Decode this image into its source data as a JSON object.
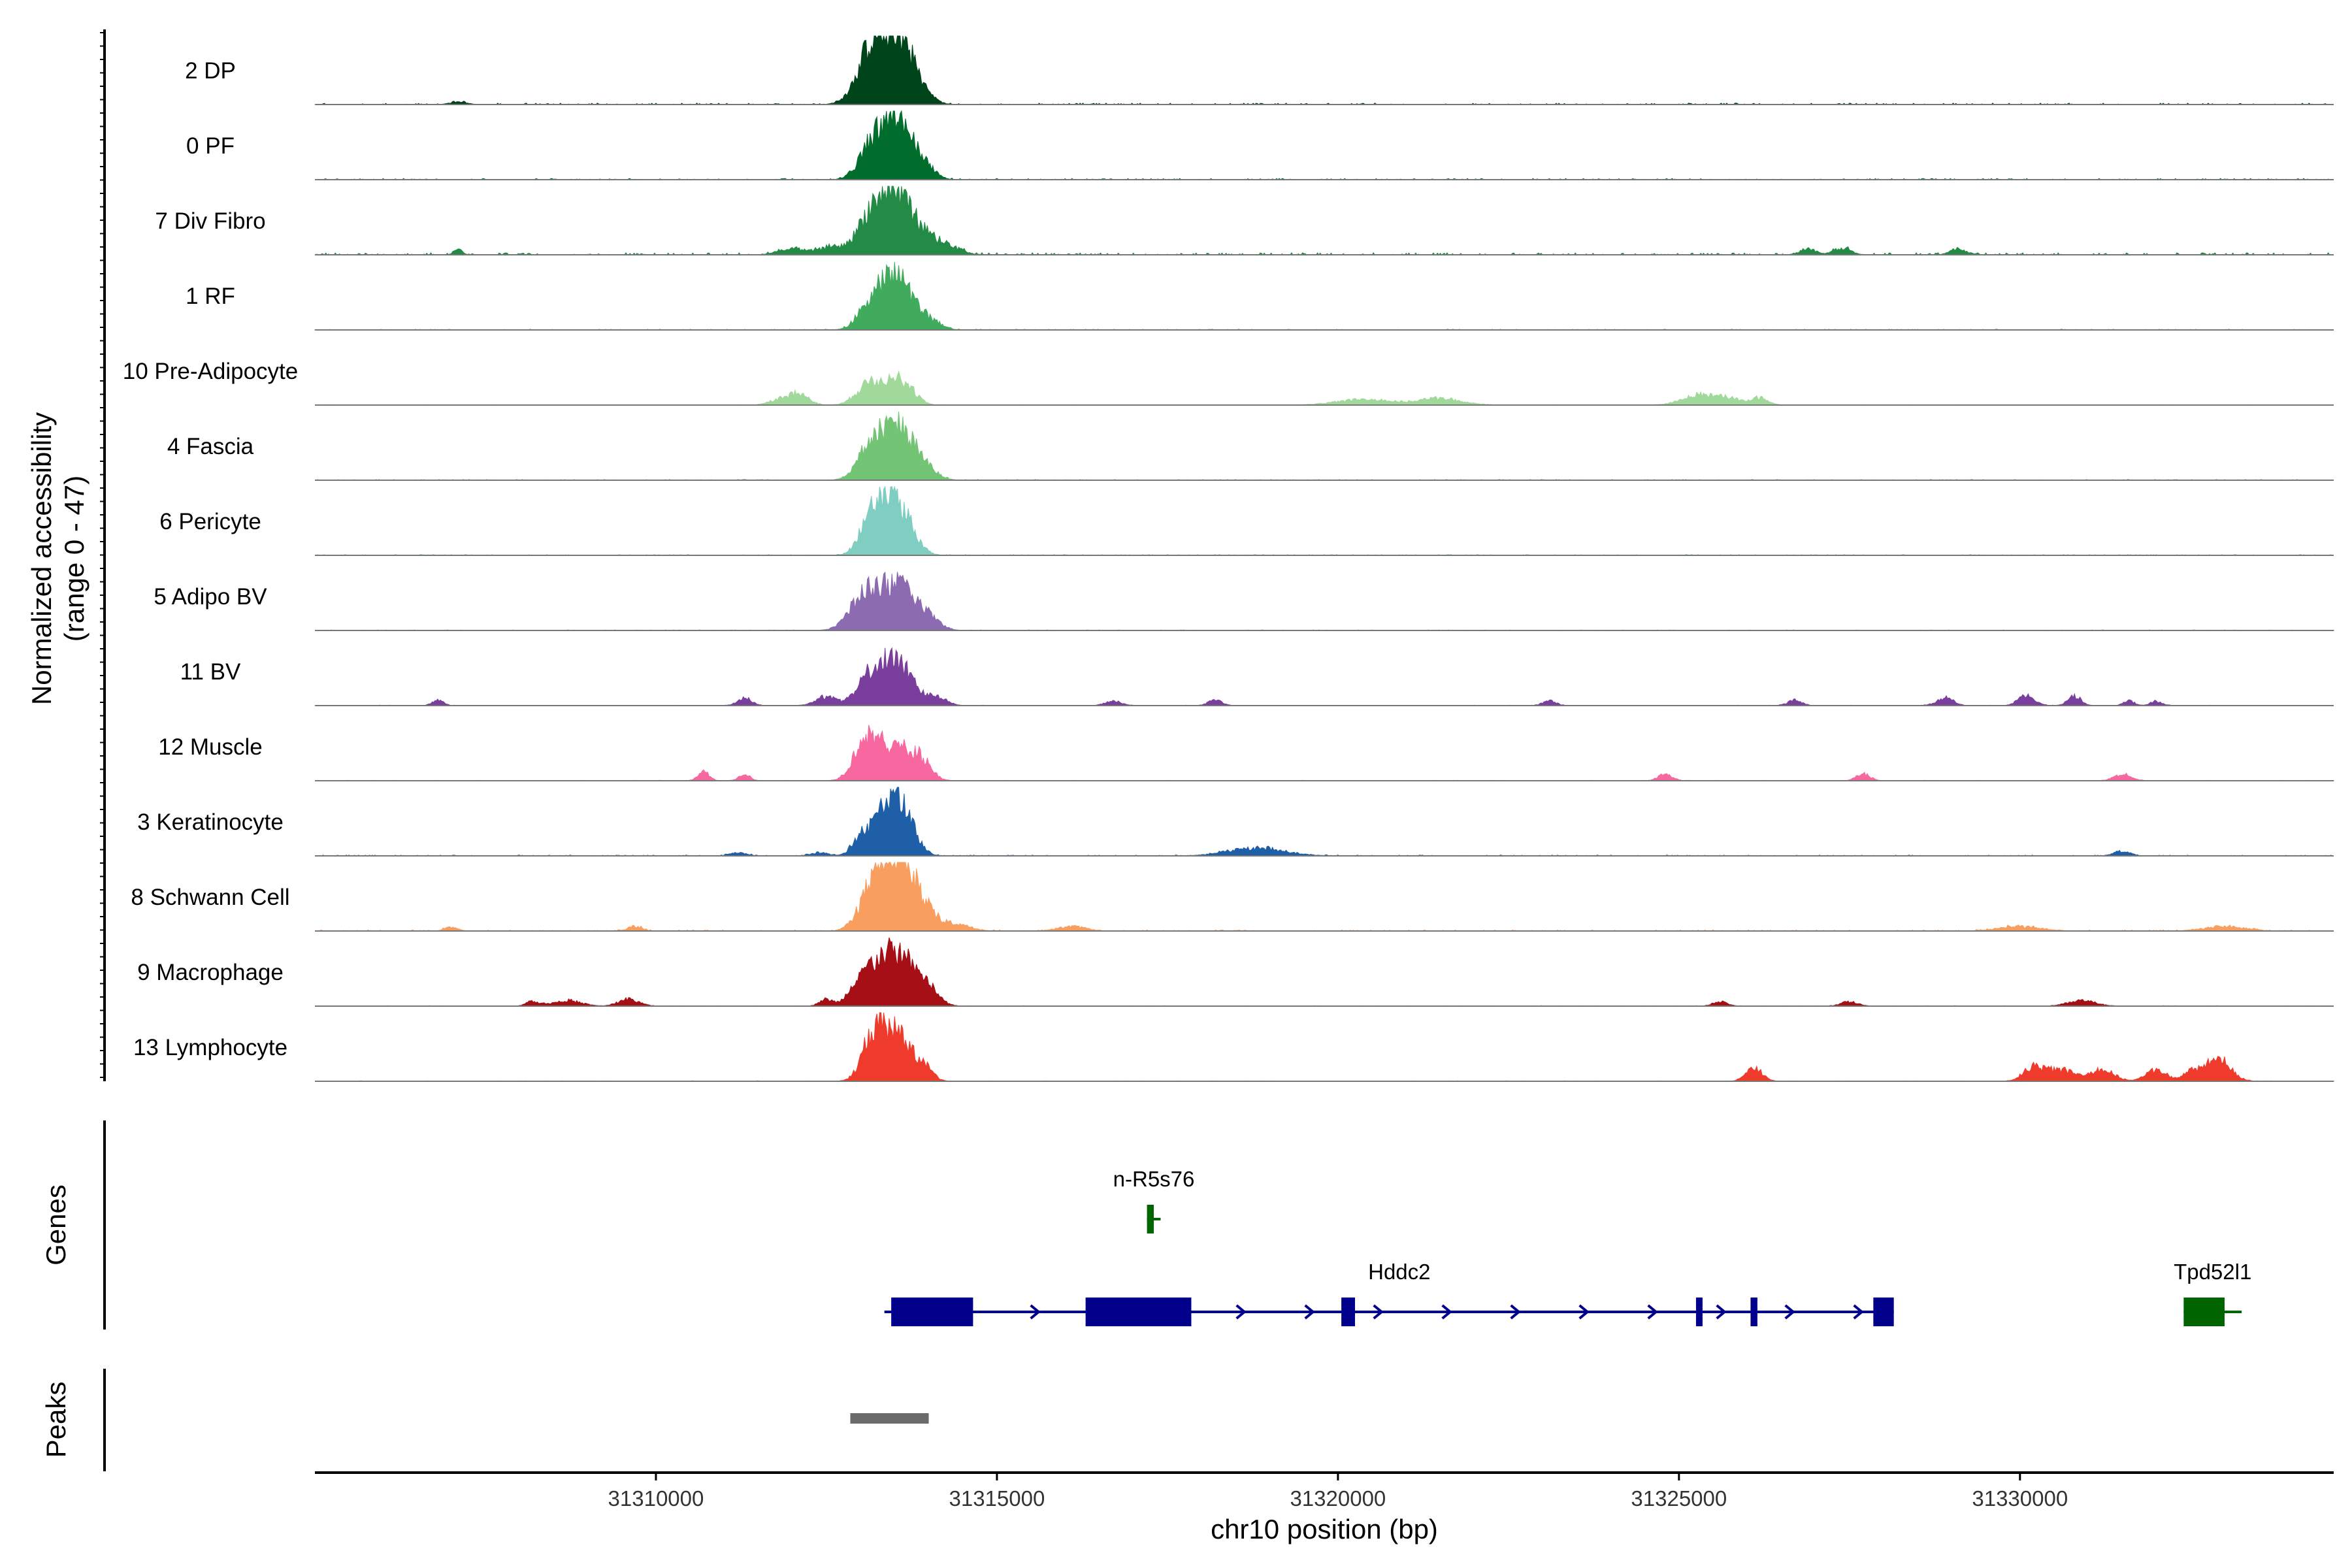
{
  "chart_data": {
    "type": "area",
    "title": "",
    "ylabel": "Normalized accessibility",
    "ylabel_range": "(range 0 - 47)",
    "ylim": [
      0,
      47
    ],
    "xlabel": "chr10 position (bp)",
    "xlim": [
      31305000,
      31334600
    ],
    "x_ticks": [
      31310000,
      31315000,
      31320000,
      31325000,
      31330000
    ],
    "x_tick_labels": [
      "31310000",
      "31315000",
      "31320000",
      "31325000",
      "31330000"
    ],
    "tracks": [
      {
        "name": "2 DP",
        "color": "#00441b",
        "peaks": [
          [
            31313400,
            47,
            260
          ],
          [
            31313200,
            22,
            180
          ],
          [
            31313650,
            24,
            160
          ],
          [
            31313000,
            10,
            180
          ],
          [
            31313900,
            8,
            160
          ],
          [
            31307100,
            2.2,
            120
          ]
        ],
        "noise": 1.0
      },
      {
        "name": "0 PF",
        "color": "#006d2c",
        "peaks": [
          [
            31313350,
            45,
            220
          ],
          [
            31313650,
            28,
            180
          ],
          [
            31313050,
            8,
            150
          ],
          [
            31313950,
            10,
            150
          ]
        ],
        "noise": 0.8
      },
      {
        "name": "7 Div Fibro",
        "color": "#238b45",
        "peaks": [
          [
            31313350,
            47,
            200
          ],
          [
            31313650,
            32,
            180
          ],
          [
            31313050,
            18,
            150
          ],
          [
            31313950,
            12,
            160
          ],
          [
            31314250,
            8,
            200
          ],
          [
            31312600,
            7,
            200
          ],
          [
            31312000,
            5,
            200
          ],
          [
            31307100,
            5,
            60
          ],
          [
            31326900,
            5,
            120
          ],
          [
            31329100,
            5,
            120
          ],
          [
            31327400,
            6,
            120
          ]
        ],
        "noise": 1.4
      },
      {
        "name": "1 RF",
        "color": "#41ab5d",
        "peaks": [
          [
            31313350,
            36,
            200
          ],
          [
            31313650,
            28,
            180
          ],
          [
            31313050,
            10,
            150
          ],
          [
            31314000,
            8,
            170
          ]
        ],
        "noise": 0.5
      },
      {
        "name": "10 Pre-Adipocyte",
        "color": "#a1d99b",
        "peaks": [
          [
            31313350,
            18,
            220
          ],
          [
            31313050,
            10,
            160
          ],
          [
            31313650,
            14,
            160
          ],
          [
            31312100,
            10,
            140
          ],
          [
            31311800,
            5,
            140
          ],
          [
            31320400,
            5,
            400
          ],
          [
            31321500,
            6,
            300
          ],
          [
            31325300,
            8,
            250
          ],
          [
            31325700,
            5,
            250
          ],
          [
            31326200,
            6,
            120
          ]
        ],
        "noise": 0.3
      },
      {
        "name": "4 Fascia",
        "color": "#74c476",
        "peaks": [
          [
            31313350,
            38,
            230
          ],
          [
            31313650,
            28,
            180
          ],
          [
            31313050,
            14,
            150
          ],
          [
            31313950,
            10,
            170
          ]
        ],
        "noise": 0.6
      },
      {
        "name": "6 Pericyte",
        "color": "#80cdc1",
        "peaks": [
          [
            31313350,
            45,
            200
          ],
          [
            31313650,
            25,
            180
          ],
          [
            31313100,
            14,
            150
          ]
        ],
        "noise": 0.6
      },
      {
        "name": "5 Adipo BV",
        "color": "#8c6bb1",
        "peaks": [
          [
            31313300,
            30,
            240
          ],
          [
            31313650,
            25,
            200
          ],
          [
            31313000,
            18,
            200
          ],
          [
            31314000,
            10,
            170
          ]
        ],
        "noise": 0.4
      },
      {
        "name": "11 BV",
        "color": "#7a3f9d",
        "peaks": [
          [
            31313350,
            32,
            200
          ],
          [
            31313650,
            25,
            170
          ],
          [
            31313050,
            16,
            150
          ],
          [
            31312500,
            8,
            150
          ],
          [
            31314100,
            8,
            150
          ],
          [
            31306800,
            5,
            80
          ],
          [
            31311300,
            7,
            100
          ],
          [
            31316700,
            4,
            120
          ],
          [
            31318200,
            5,
            100
          ],
          [
            31323100,
            4,
            100
          ],
          [
            31326700,
            5,
            100
          ],
          [
            31328900,
            7,
            120
          ],
          [
            31330100,
            9,
            120
          ],
          [
            31330800,
            8,
            100
          ],
          [
            31331600,
            4,
            80
          ],
          [
            31332000,
            4,
            80
          ]
        ],
        "noise": 0.3
      },
      {
        "name": "12 Muscle",
        "color": "#f768a1",
        "peaks": [
          [
            31313200,
            28,
            200
          ],
          [
            31313600,
            24,
            200
          ],
          [
            31313000,
            16,
            150
          ],
          [
            31313900,
            14,
            150
          ],
          [
            31310700,
            8,
            80
          ],
          [
            31311300,
            6,
            80
          ],
          [
            31324800,
            6,
            100
          ],
          [
            31327700,
            6,
            100
          ],
          [
            31331500,
            6,
            120
          ]
        ],
        "noise": 0.3
      },
      {
        "name": "3 Keratinocyte",
        "color": "#1f5fa8",
        "peaks": [
          [
            31313400,
            42,
            200
          ],
          [
            31313650,
            25,
            170
          ],
          [
            31313000,
            16,
            120
          ],
          [
            31318800,
            7,
            400
          ],
          [
            31312400,
            3,
            120
          ],
          [
            31311200,
            3,
            120
          ],
          [
            31331500,
            4,
            120
          ]
        ],
        "noise": 0.6
      },
      {
        "name": "8 Schwann Cell",
        "color": "#f89e5f",
        "peaks": [
          [
            31313400,
            47,
            230
          ],
          [
            31313650,
            36,
            200
          ],
          [
            31313100,
            18,
            170
          ],
          [
            31313950,
            14,
            180
          ],
          [
            31314400,
            6,
            200
          ],
          [
            31309700,
            4,
            100
          ],
          [
            31316100,
            4,
            200
          ],
          [
            31307000,
            3,
            100
          ],
          [
            31330000,
            4,
            300
          ],
          [
            31333000,
            4,
            300
          ]
        ],
        "noise": 0.7
      },
      {
        "name": "9 Macrophage",
        "color": "#a50f15",
        "peaks": [
          [
            31313350,
            38,
            180
          ],
          [
            31313650,
            30,
            170
          ],
          [
            31313000,
            26,
            150
          ],
          [
            31313950,
            18,
            170
          ],
          [
            31312500,
            6,
            100
          ],
          [
            31309600,
            6,
            150
          ],
          [
            31308700,
            5,
            200
          ],
          [
            31308200,
            4,
            100
          ],
          [
            31325600,
            4,
            100
          ],
          [
            31330900,
            5,
            200
          ],
          [
            31327500,
            4,
            120
          ]
        ],
        "noise": 0.3
      },
      {
        "name": "13 Lymphocyte",
        "color": "#ef3b2c",
        "peaks": [
          [
            31313400,
            42,
            200
          ],
          [
            31313150,
            24,
            150
          ],
          [
            31313700,
            18,
            150
          ],
          [
            31313950,
            10,
            120
          ],
          [
            31326100,
            12,
            120
          ],
          [
            31330200,
            12,
            150
          ],
          [
            31330600,
            10,
            200
          ],
          [
            31331200,
            10,
            180
          ],
          [
            31332000,
            10,
            150
          ],
          [
            31332900,
            20,
            180
          ],
          [
            31332500,
            8,
            120
          ]
        ],
        "noise": 0.3
      }
    ],
    "genes": [
      {
        "name": "n-R5s76",
        "color": "#006400",
        "start": 31317200,
        "end": 31317400,
        "strand": "-",
        "row": 0,
        "exons": [
          [
            31317200,
            31317300
          ]
        ]
      },
      {
        "name": "Hddc2",
        "color": "#00008b",
        "start": 31313350,
        "end": 31328150,
        "strand": "+",
        "row": 1,
        "exons": [
          [
            31313450,
            31314650
          ],
          [
            31316300,
            31317850
          ],
          [
            31320050,
            31320250
          ],
          [
            31325250,
            31325300
          ],
          [
            31326050,
            31326150
          ],
          [
            31327850,
            31328150
          ]
        ]
      },
      {
        "name": "Tpd52l1",
        "color": "#006400",
        "start": 31332400,
        "end": 31333250,
        "strand": "+",
        "row": 1,
        "exons": [
          [
            31332400,
            31333000
          ]
        ]
      }
    ],
    "peaks": [
      [
        31312850,
        31314000
      ]
    ],
    "panel_labels": {
      "genes": "Genes",
      "peaks": "Peaks"
    },
    "peak_color": "#6b6b6b"
  }
}
